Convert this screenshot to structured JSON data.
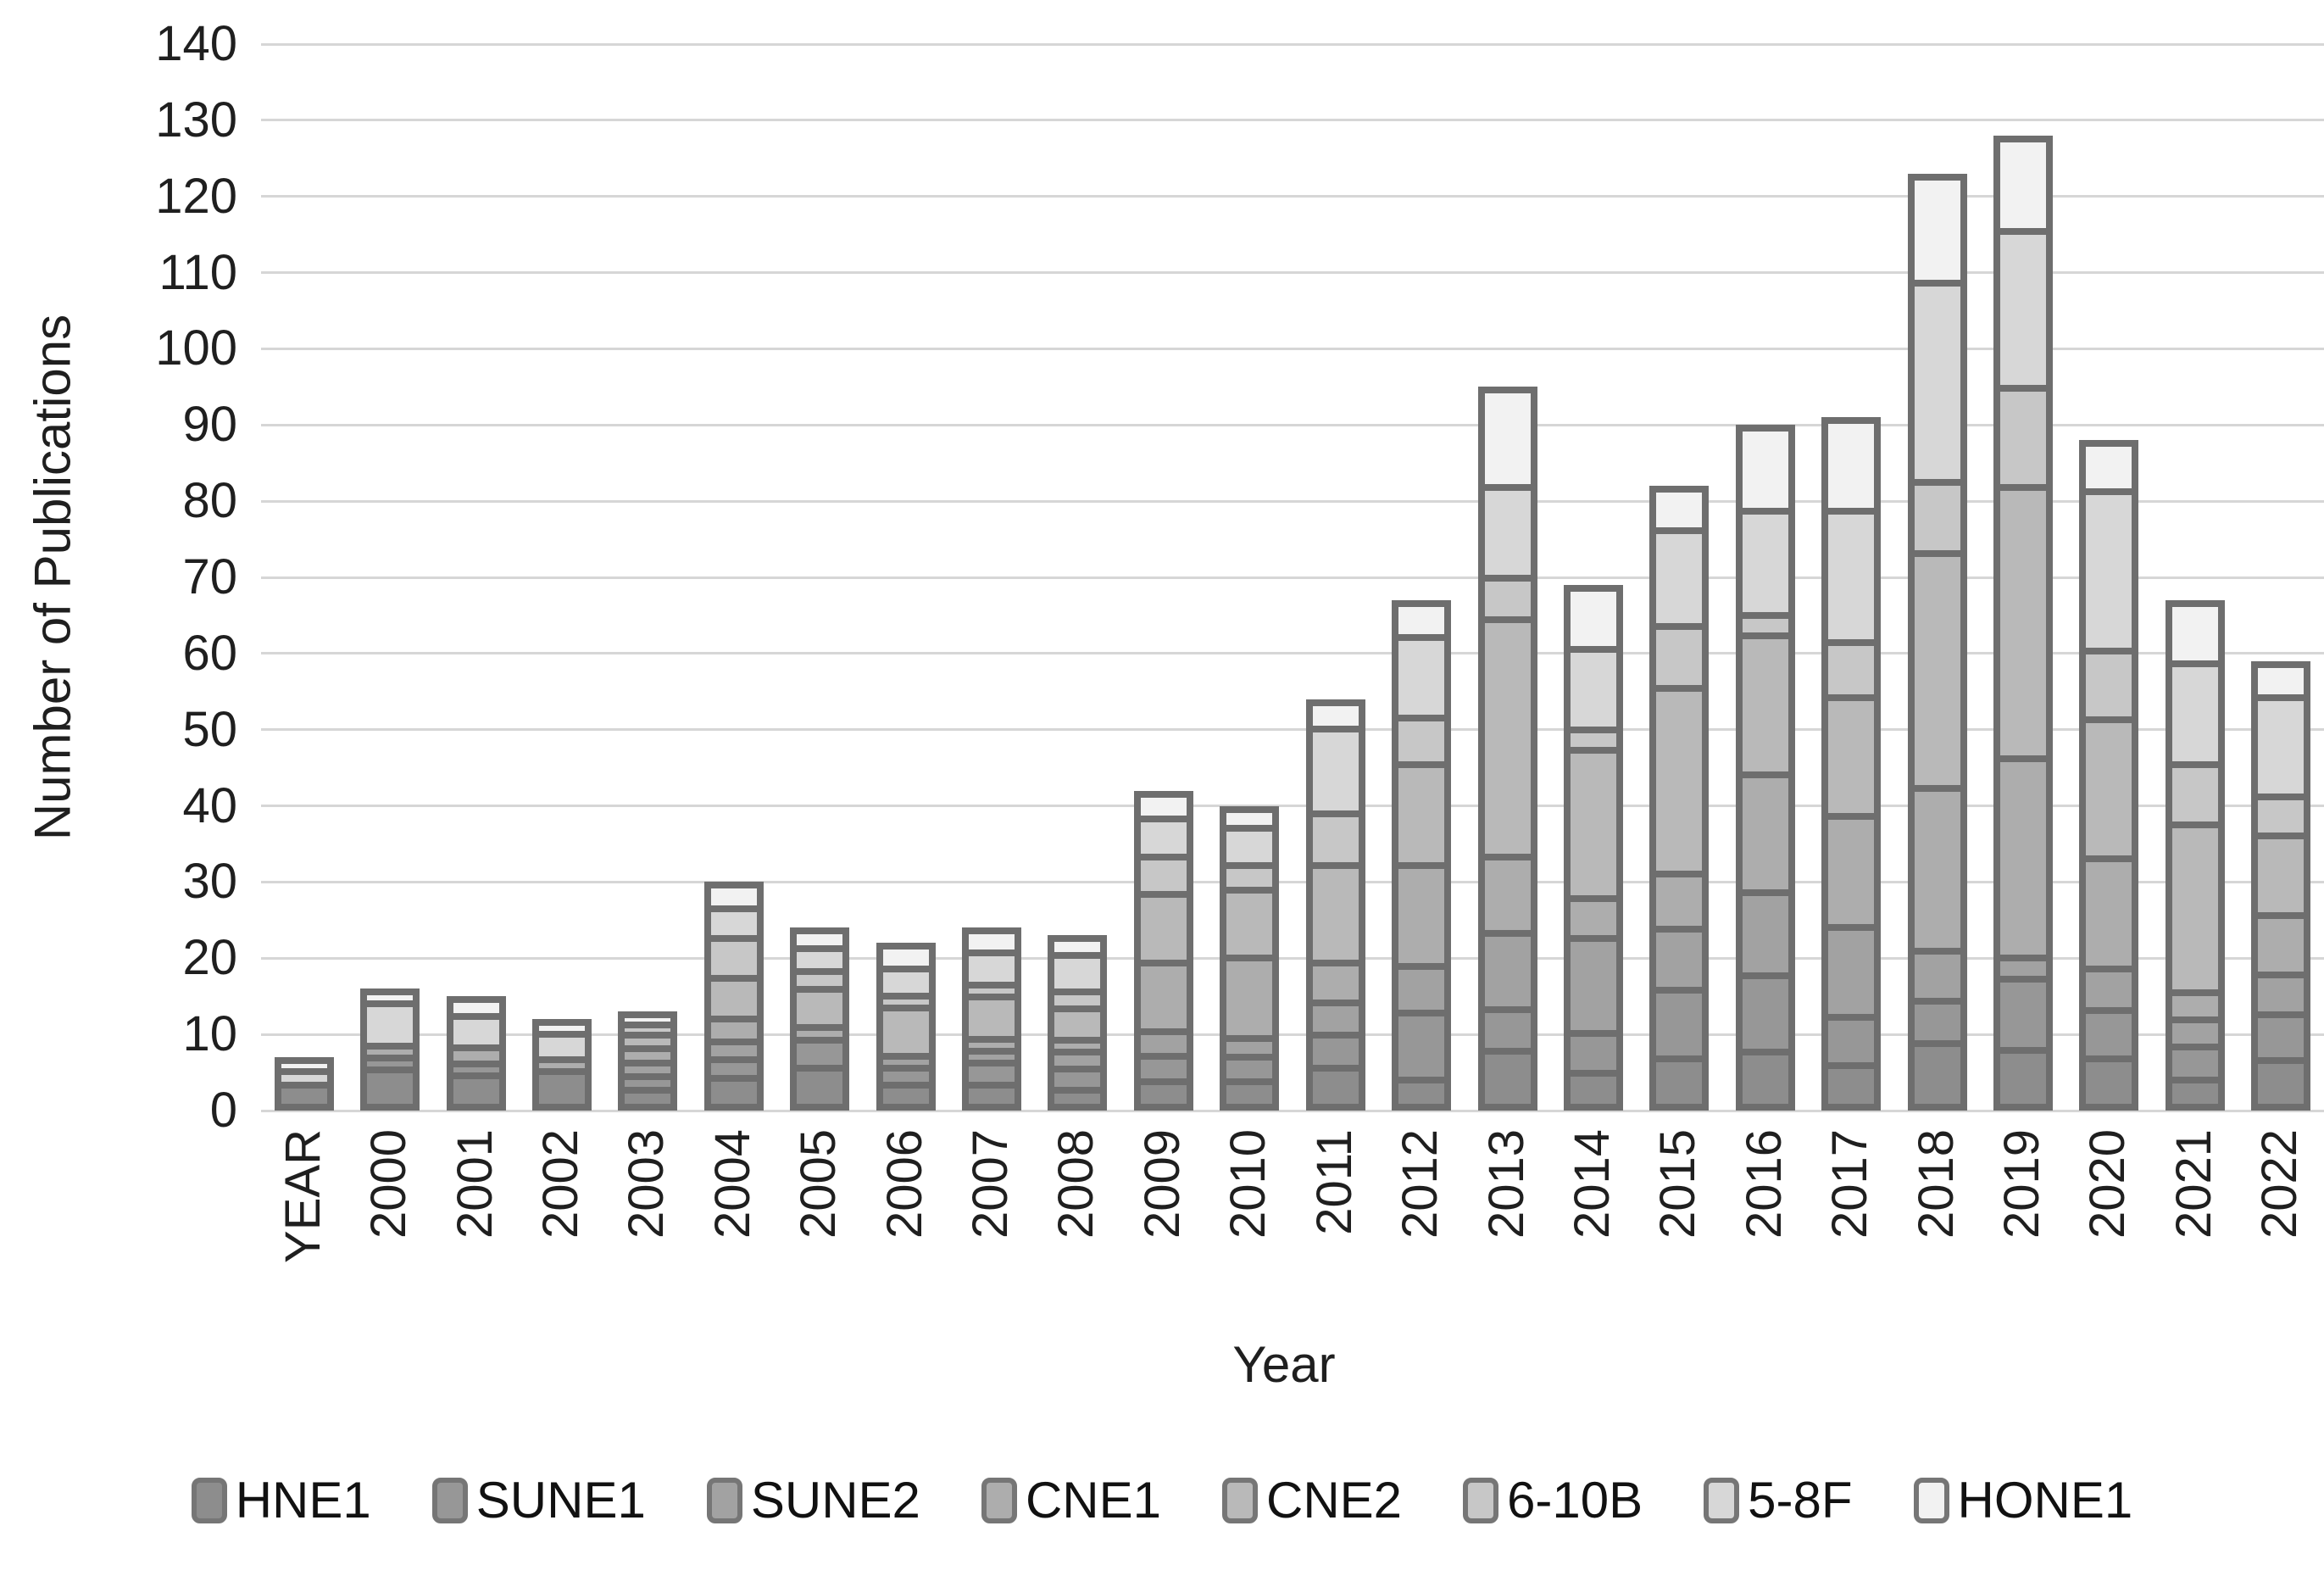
{
  "chart_data": {
    "type": "bar",
    "stacked": true,
    "title": "",
    "xlabel": "Year",
    "ylabel": "Number of Publications",
    "ylim": [
      0,
      140
    ],
    "ytick_step": 10,
    "yticks": [
      0,
      10,
      20,
      30,
      40,
      50,
      60,
      70,
      80,
      90,
      100,
      110,
      120,
      130,
      140
    ],
    "grid": true,
    "legend_position": "bottom",
    "categories": [
      "YEAR",
      "2000",
      "2001",
      "2002",
      "2003",
      "2004",
      "2005",
      "2006",
      "2007",
      "2008",
      "2009",
      "2010",
      "2011",
      "2012",
      "2013",
      "2014",
      "2015",
      "2016",
      "2017",
      "2018",
      "2019",
      "2020",
      "2021",
      "2022"
    ],
    "series": [
      {
        "name": "HNE1",
        "color": "#8d8d8d",
        "values": [
          4,
          6,
          5,
          6,
          3,
          4,
          6,
          3,
          3,
          2,
          3,
          3,
          5,
          3,
          7,
          4,
          6,
          7,
          5,
          8,
          7,
          6,
          3,
          6
        ]
      },
      {
        "name": "SUNE1",
        "color": "#979797",
        "values": [
          0,
          1,
          1,
          0,
          2,
          2,
          4,
          2,
          3,
          3,
          3,
          3,
          4,
          9,
          5,
          5,
          9,
          10,
          6,
          5,
          9,
          6,
          4,
          6
        ]
      },
      {
        "name": "SUNE2",
        "color": "#a2a2a2",
        "values": [
          0,
          0,
          0,
          0,
          2,
          2,
          0,
          1,
          1,
          2,
          3,
          2,
          4,
          6,
          10,
          13,
          8,
          11,
          12,
          6,
          2,
          5,
          3,
          5
        ]
      },
      {
        "name": "CNE1",
        "color": "#adadad",
        "values": [
          0,
          1,
          2,
          1,
          2,
          3,
          1,
          0,
          1,
          1,
          10,
          12,
          5,
          14,
          10,
          5,
          7,
          16,
          15,
          22,
          27,
          15,
          3,
          8
        ]
      },
      {
        "name": "CNE2",
        "color": "#b9b9b9",
        "values": [
          0,
          0,
          0,
          0,
          2,
          6,
          6,
          8,
          7,
          5,
          10,
          10,
          14,
          14,
          33,
          21,
          26,
          19,
          16,
          32,
          37,
          19,
          24,
          11
        ]
      },
      {
        "name": "6-10B",
        "color": "#c7c7c7",
        "values": [
          0,
          0,
          0,
          0,
          1,
          6,
          2,
          1,
          1,
          2,
          5,
          3,
          7,
          6,
          5,
          2,
          8,
          2,
          7,
          9,
          13,
          9,
          8,
          5
        ]
      },
      {
        "name": "5-8F",
        "color": "#d7d7d7",
        "values": [
          2,
          7,
          5,
          4,
          0,
          4,
          3,
          4,
          5,
          6,
          5,
          5,
          12,
          11,
          12,
          11,
          13,
          14,
          18,
          27,
          21,
          22,
          14,
          14
        ]
      },
      {
        "name": "HONE1",
        "color": "#f2f2f2",
        "values": [
          1,
          1,
          2,
          1,
          1,
          3,
          2,
          3,
          3,
          2,
          3,
          2,
          3,
          4,
          13,
          8,
          5,
          11,
          12,
          14,
          12,
          6,
          8,
          4
        ]
      }
    ],
    "totals": [
      7,
      16,
      15,
      12,
      13,
      30,
      24,
      22,
      24,
      23,
      42,
      40,
      54,
      67,
      95,
      69,
      82,
      90,
      91,
      123,
      128,
      88,
      67,
      59
    ]
  },
  "style": {
    "segment_border": "#6e6e6e",
    "gridline_color": "#d6d6d6",
    "text_color": "#1f1f1f",
    "background": "#ffffff"
  }
}
